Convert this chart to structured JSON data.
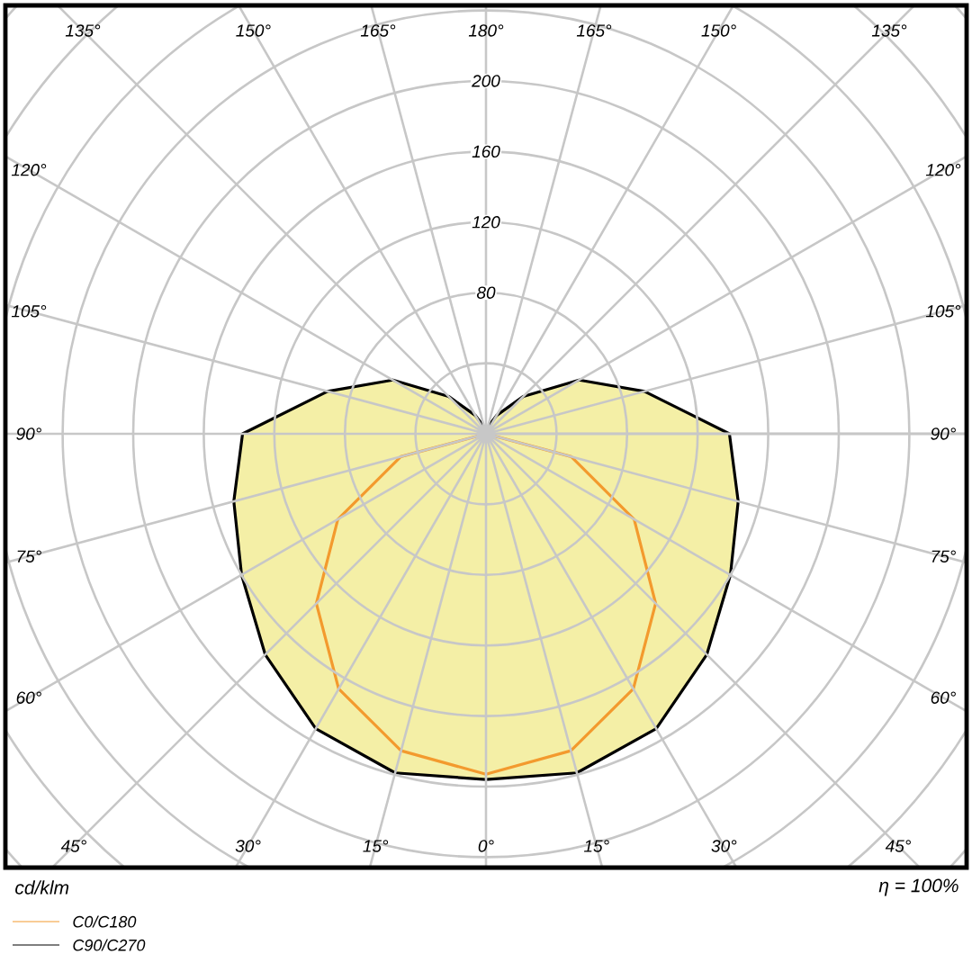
{
  "chart_data": {
    "type": "radar",
    "ylabel": "cd/klm",
    "annotations": [
      "η = 100%"
    ],
    "categories": [
      "180°",
      "165°",
      "150°",
      "135°",
      "120°",
      "105°",
      "90°",
      "75°",
      "60°",
      "45°",
      "30°",
      "15°",
      "0°",
      "15°",
      "30°",
      "45°",
      "60°",
      "75°",
      "90°",
      "105°",
      "120°",
      "135°",
      "150°",
      "165°"
    ],
    "series": [
      {
        "name": "C0/C180",
        "color": "#f39a2e",
        "values": [
          0,
          0,
          0,
          0,
          0,
          0,
          0,
          50,
          97,
          136,
          167,
          186,
          193,
          186,
          167,
          136,
          97,
          50,
          0,
          0,
          0,
          0,
          0,
          0
        ]
      },
      {
        "name": "C90/C270",
        "color": "#000000",
        "values": [
          0,
          4,
          12,
          30,
          61,
          93,
          138,
          148,
          160,
          177,
          193,
          199,
          196,
          199,
          193,
          177,
          160,
          148,
          138,
          93,
          61,
          30,
          12,
          4
        ]
      }
    ],
    "ylim": [
      0,
      360
    ],
    "yticks": [
      80,
      120,
      160,
      200
    ],
    "grid": true,
    "legend": "bottom left"
  }
}
